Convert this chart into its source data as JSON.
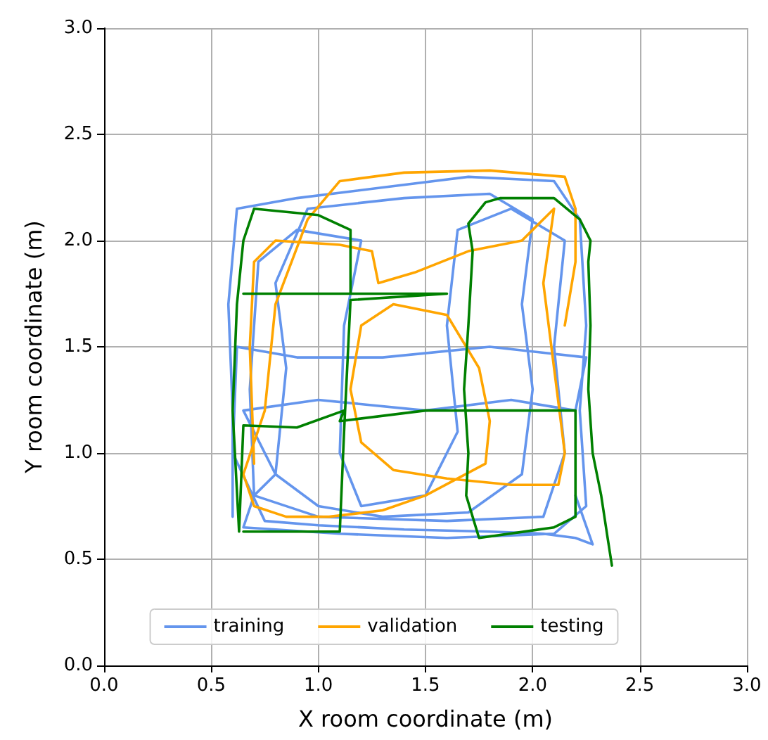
{
  "chart_data": {
    "type": "line",
    "xlabel": "X room coordinate (m)",
    "ylabel": "Y room coordinate (m)",
    "xlim": [
      0,
      3
    ],
    "ylim": [
      0,
      3
    ],
    "xticks": [
      {
        "value": 0,
        "label": "0.0"
      },
      {
        "value": 0.5,
        "label": "0.5"
      },
      {
        "value": 1,
        "label": "1.0"
      },
      {
        "value": 1.5,
        "label": "1.5"
      },
      {
        "value": 2,
        "label": "2.0"
      },
      {
        "value": 2.5,
        "label": "2.5"
      },
      {
        "value": 3,
        "label": "3.0"
      }
    ],
    "yticks": [
      {
        "value": 0,
        "label": "0.0"
      },
      {
        "value": 0.5,
        "label": "0.5"
      },
      {
        "value": 1,
        "label": "1.0"
      },
      {
        "value": 1.5,
        "label": "1.5"
      },
      {
        "value": 2,
        "label": "2.0"
      },
      {
        "value": 2.5,
        "label": "2.5"
      },
      {
        "value": 3,
        "label": "3.0"
      }
    ],
    "grid": true,
    "legend": "bottom",
    "marker": "none",
    "line_style": "solid",
    "series": [
      {
        "name": "training",
        "color": "#6495ed",
        "x": [
          0.6,
          0.6,
          0.58,
          0.62,
          0.9,
          1.3,
          1.7,
          2.1,
          2.22,
          2.25,
          2.22,
          2.25,
          2.1,
          1.6,
          1.1,
          0.65,
          0.7,
          0.68,
          0.72,
          0.9,
          1.2,
          1.12,
          1.1,
          1.2,
          1.5,
          1.65,
          1.6,
          1.65,
          1.9,
          2.15,
          2.1,
          2.15,
          2.05,
          1.6,
          1.0,
          0.7,
          0.8,
          0.85,
          0.8,
          0.95,
          1.4,
          1.8,
          2.0,
          1.95,
          2.0,
          1.95,
          1.7,
          1.3,
          1.0,
          0.8,
          0.65,
          1.0,
          1.5,
          1.9,
          2.2,
          2.25,
          1.8,
          1.3,
          0.9,
          0.62,
          0.6,
          0.75,
          1.0,
          1.4,
          1.8,
          2.05,
          2.2,
          2.28,
          2.2
        ],
        "values": [
          0.7,
          1.2,
          1.7,
          2.15,
          2.2,
          2.25,
          2.3,
          2.28,
          2.1,
          1.6,
          1.2,
          0.75,
          0.62,
          0.6,
          0.62,
          0.65,
          0.8,
          1.3,
          1.9,
          2.05,
          2.0,
          1.6,
          1.0,
          0.75,
          0.8,
          1.1,
          1.6,
          2.05,
          2.15,
          2.0,
          1.5,
          1.0,
          0.7,
          0.68,
          0.7,
          0.8,
          0.9,
          1.4,
          1.8,
          2.15,
          2.2,
          2.22,
          2.1,
          1.7,
          1.3,
          0.9,
          0.72,
          0.7,
          0.75,
          0.9,
          1.2,
          1.25,
          1.2,
          1.25,
          1.2,
          1.45,
          1.5,
          1.45,
          1.45,
          1.5,
          1.0,
          0.68,
          0.66,
          0.64,
          0.63,
          0.62,
          0.6,
          0.57,
          0.8
        ]
      },
      {
        "name": "validation",
        "color": "#ffa500",
        "x": [
          0.7,
          0.68,
          0.7,
          0.8,
          1.1,
          1.25,
          1.28,
          1.45,
          1.7,
          1.95,
          2.0,
          2.1,
          2.05,
          2.1,
          2.15,
          2.12,
          1.9,
          1.6,
          1.35,
          1.2,
          1.15,
          1.2,
          1.35,
          1.6,
          1.75,
          1.8,
          1.78,
          1.5,
          1.3,
          1.05,
          0.85,
          0.7,
          0.65,
          0.75,
          0.8,
          0.95,
          1.1,
          1.4,
          1.8,
          2.15,
          2.2,
          2.2,
          2.15
        ],
        "values": [
          0.95,
          1.5,
          1.9,
          2.0,
          1.98,
          1.95,
          1.8,
          1.85,
          1.95,
          2.0,
          2.05,
          2.15,
          1.8,
          1.4,
          1.0,
          0.85,
          0.85,
          0.88,
          0.92,
          1.05,
          1.3,
          1.6,
          1.7,
          1.65,
          1.4,
          1.15,
          0.95,
          0.8,
          0.73,
          0.7,
          0.7,
          0.75,
          0.9,
          1.2,
          1.7,
          2.1,
          2.28,
          2.32,
          2.33,
          2.3,
          2.15,
          1.9,
          1.6
        ]
      },
      {
        "name": "testing",
        "color": "#008000",
        "x": [
          2.37,
          2.35,
          2.32,
          2.28,
          2.26,
          2.27,
          2.26,
          2.27,
          2.22,
          2.1,
          2.0,
          1.85,
          1.78,
          1.7,
          1.72,
          1.7,
          1.68,
          1.7,
          1.69,
          1.75,
          2.1,
          2.2,
          2.2,
          1.9,
          1.5,
          1.1,
          1.12,
          0.9,
          0.65,
          0.63,
          0.6,
          0.62,
          0.65,
          0.7,
          1.0,
          1.15,
          1.15,
          0.9,
          0.65,
          1.0,
          1.6,
          1.15,
          1.12,
          1.1,
          0.65
        ],
        "values": [
          0.47,
          0.6,
          0.8,
          1.0,
          1.3,
          1.6,
          1.9,
          2.0,
          2.1,
          2.2,
          2.2,
          2.2,
          2.18,
          2.08,
          1.95,
          1.6,
          1.3,
          1.0,
          0.8,
          0.6,
          0.65,
          0.7,
          1.2,
          1.2,
          1.2,
          1.15,
          1.2,
          1.12,
          1.13,
          0.63,
          1.2,
          1.7,
          2.0,
          2.15,
          2.12,
          2.05,
          1.75,
          1.75,
          1.75,
          1.75,
          1.75,
          1.72,
          1.1,
          0.63,
          0.63
        ]
      }
    ]
  }
}
